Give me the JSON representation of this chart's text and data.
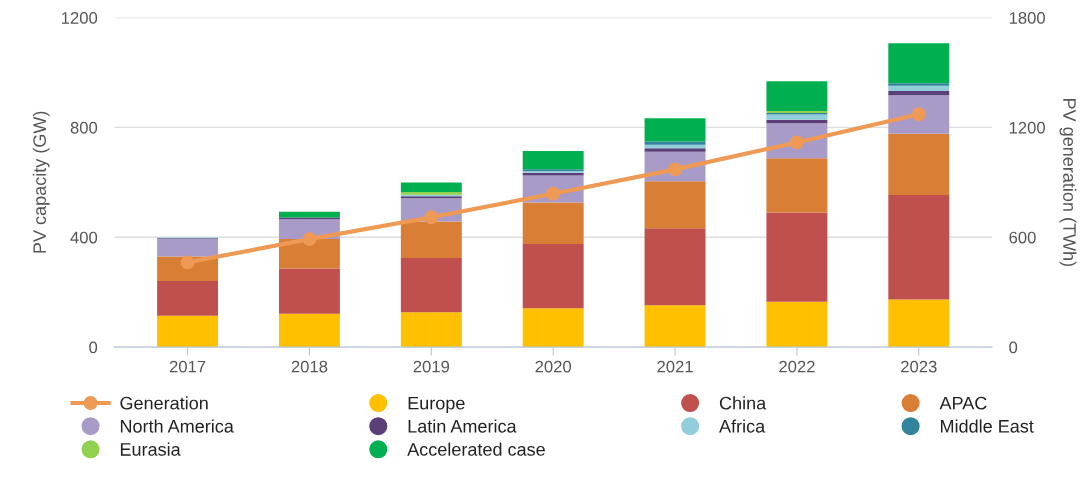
{
  "chart_data": {
    "type": "bar",
    "stacked": true,
    "ylabel": "PV capacity (GW)",
    "y2label": "PV generation (TWh)",
    "categories": [
      "2017",
      "2018",
      "2019",
      "2020",
      "2021",
      "2022",
      "2023"
    ],
    "ylim": [
      0,
      1200
    ],
    "yticks": [
      0,
      400,
      800,
      1200
    ],
    "y2lim": [
      0,
      1800
    ],
    "y2ticks": [
      0,
      600,
      1200,
      1800
    ],
    "grid": "y",
    "legend": "bottom",
    "series": [
      {
        "name": "Generation",
        "type": "line",
        "axis": "y2",
        "marker": "circle",
        "color": "#ee9a55",
        "values": [
          463,
          590,
          709,
          838,
          971,
          1118,
          1272
        ]
      },
      {
        "name": "Europe",
        "color": "#ffc000",
        "values": [
          114,
          121,
          127,
          141,
          152,
          165,
          173
        ]
      },
      {
        "name": "China",
        "color": "#c0504d",
        "values": [
          127,
          165,
          197,
          234,
          281,
          325,
          381
        ]
      },
      {
        "name": "APAC",
        "color": "#d97e35",
        "values": [
          89,
          108,
          133,
          152,
          171,
          198,
          223
        ]
      },
      {
        "name": "North America",
        "color": "#a99bc8",
        "values": [
          64,
          72,
          85,
          98,
          107,
          127,
          140
        ]
      },
      {
        "name": "Latin America",
        "color": "#5b3f79",
        "values": [
          2,
          6,
          7,
          10,
          13,
          13,
          16
        ]
      },
      {
        "name": "Africa",
        "color": "#92cddc",
        "values": [
          3,
          null,
          6,
          6,
          13,
          19,
          19
        ]
      },
      {
        "name": "Middle East",
        "color": "#31849b",
        "values": [
          0,
          0,
          0,
          7,
          12,
          6,
          9
        ]
      },
      {
        "name": "Eurasia",
        "color": "#92d050",
        "values": [
          0,
          0,
          10,
          0,
          0,
          7,
          0
        ]
      },
      {
        "name": "Accelerated case",
        "color": "#00b050",
        "values": [
          0,
          21,
          34,
          66,
          84,
          108,
          146
        ]
      }
    ]
  }
}
